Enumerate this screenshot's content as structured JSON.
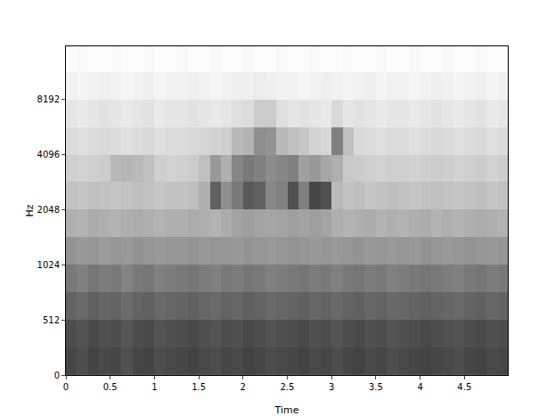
{
  "chart_data": {
    "type": "heatmap",
    "xlabel": "Time",
    "ylabel": "Hz",
    "log": "y",
    "xlim": [
      0,
      4.99
    ],
    "xticks": [
      0,
      0.5,
      1,
      1.5,
      2,
      2.5,
      3,
      3.5,
      4,
      4.5
    ],
    "ylim": [
      0,
      16000
    ],
    "yticks": [
      0,
      512,
      1024,
      2048,
      4096,
      8192
    ],
    "color_range": [
      -80,
      0
    ],
    "x": [
      0.0625,
      0.1875,
      0.3125,
      0.4375,
      0.5625,
      0.6875,
      0.8125,
      0.9375,
      1.0625,
      1.1875,
      1.3125,
      1.4375,
      1.5625,
      1.6875,
      1.8125,
      1.9375,
      2.0625,
      2.1875,
      2.3125,
      2.4375,
      2.5625,
      2.6875,
      2.8125,
      2.9375,
      3.0625,
      3.1875,
      3.3125,
      3.4375,
      3.5625,
      3.6875,
      3.8125,
      3.9375,
      4.0625,
      4.1875,
      4.3125,
      4.4375,
      4.5625,
      4.6875,
      4.8125,
      4.9375
    ],
    "y": [
      128,
      384,
      608,
      861,
      1218,
      1722,
      2435,
      3444,
      4871,
      6889,
      9742,
      13777
    ],
    "z": [
      [
        -22,
        -24,
        -21,
        -23,
        -22,
        -25,
        -22,
        -21,
        -24,
        -23,
        -22,
        -21,
        -23,
        -24,
        -22,
        -23,
        -21,
        -22,
        -24,
        -23,
        -22,
        -21,
        -23,
        -22,
        -24,
        -22,
        -21,
        -23,
        -22,
        -24,
        -23,
        -22,
        -21,
        -22,
        -23,
        -24,
        -22,
        -21,
        -23,
        -22
      ],
      [
        -24,
        -26,
        -23,
        -25,
        -24,
        -27,
        -24,
        -23,
        -26,
        -25,
        -24,
        -23,
        -25,
        -26,
        -24,
        -25,
        -23,
        -24,
        -26,
        -25,
        -24,
        -23,
        -25,
        -24,
        -26,
        -24,
        -23,
        -25,
        -24,
        -26,
        -25,
        -24,
        -23,
        -24,
        -25,
        -26,
        -24,
        -23,
        -25,
        -24
      ],
      [
        -31,
        -33,
        -30,
        -32,
        -31,
        -34,
        -31,
        -30,
        -33,
        -32,
        -31,
        -30,
        -32,
        -33,
        -31,
        -32,
        -30,
        -31,
        -33,
        -32,
        -31,
        -30,
        -32,
        -31,
        -33,
        -31,
        -30,
        -32,
        -31,
        -33,
        -32,
        -31,
        -30,
        -31,
        -32,
        -33,
        -31,
        -30,
        -32,
        -31
      ],
      [
        -38,
        -40,
        -37,
        -39,
        -38,
        -41,
        -38,
        -37,
        -40,
        -39,
        -38,
        -37,
        -39,
        -40,
        -38,
        -39,
        -37,
        -38,
        -40,
        -39,
        -38,
        -37,
        -39,
        -38,
        -40,
        -38,
        -37,
        -39,
        -38,
        -40,
        -39,
        -38,
        -37,
        -38,
        -39,
        -40,
        -38,
        -37,
        -39,
        -38
      ],
      [
        -46,
        -48,
        -47,
        -49,
        -47,
        -48,
        -46,
        -47,
        -48,
        -47,
        -47,
        -46,
        -48,
        -47,
        -47,
        -48,
        -46,
        -47,
        -48,
        -47,
        -46,
        -47,
        -48,
        -47,
        -48,
        -47,
        -46,
        -48,
        -47,
        -48,
        -47,
        -48,
        -46,
        -47,
        -48,
        -47,
        -46,
        -47,
        -48,
        -47
      ],
      [
        -55,
        -56,
        -54,
        -55,
        -56,
        -55,
        -54,
        -55,
        -56,
        -55,
        -55,
        -54,
        -55,
        -56,
        -54,
        -51,
        -50,
        -51,
        -52,
        -51,
        -50,
        -51,
        -50,
        -51,
        -55,
        -56,
        -55,
        -54,
        -56,
        -55,
        -56,
        -55,
        -54,
        -56,
        -55,
        -56,
        -55,
        -54,
        -55,
        -56
      ],
      [
        -61,
        -62,
        -60,
        -61,
        -62,
        -61,
        -60,
        -61,
        -62,
        -61,
        -61,
        -60,
        -55,
        -30,
        -45,
        -38,
        -28,
        -30,
        -42,
        -40,
        -25,
        -40,
        -22,
        -25,
        -58,
        -61,
        -60,
        -62,
        -61,
        -60,
        -61,
        -62,
        -61,
        -60,
        -61,
        -62,
        -61,
        -60,
        -62,
        -61
      ],
      [
        -65,
        -66,
        -65,
        -64,
        -58,
        -57,
        -58,
        -60,
        -65,
        -66,
        -65,
        -64,
        -60,
        -48,
        -55,
        -42,
        -38,
        -40,
        -44,
        -42,
        -40,
        -50,
        -48,
        -52,
        -55,
        -63,
        -64,
        -65,
        -66,
        -65,
        -65,
        -66,
        -65,
        -64,
        -65,
        -66,
        -65,
        -64,
        -66,
        -65
      ],
      [
        -69,
        -70,
        -69,
        -68,
        -69,
        -70,
        -69,
        -68,
        -70,
        -69,
        -69,
        -68,
        -67,
        -66,
        -65,
        -58,
        -56,
        -45,
        -46,
        -58,
        -60,
        -62,
        -66,
        -67,
        -40,
        -60,
        -68,
        -69,
        -70,
        -69,
        -69,
        -70,
        -69,
        -68,
        -69,
        -70,
        -69,
        -68,
        -70,
        -69
      ],
      [
        -72,
        -73,
        -72,
        -71,
        -72,
        -73,
        -72,
        -71,
        -73,
        -72,
        -72,
        -71,
        -72,
        -73,
        -72,
        -70,
        -69,
        -64,
        -64,
        -70,
        -72,
        -71,
        -72,
        -73,
        -68,
        -72,
        -71,
        -72,
        -73,
        -72,
        -72,
        -73,
        -72,
        -71,
        -72,
        -73,
        -72,
        -71,
        -73,
        -72
      ],
      [
        -76,
        -77,
        -76,
        -75,
        -76,
        -77,
        -76,
        -75,
        -77,
        -76,
        -76,
        -75,
        -76,
        -77,
        -76,
        -75,
        -75,
        -74,
        -75,
        -76,
        -76,
        -77,
        -76,
        -75,
        -76,
        -77,
        -76,
        -75,
        -77,
        -76,
        -76,
        -77,
        -76,
        -75,
        -76,
        -77,
        -76,
        -75,
        -77,
        -76
      ],
      [
        -79,
        -78,
        -79,
        -79,
        -78,
        -79,
        -79,
        -78,
        -79,
        -79,
        -78,
        -79,
        -79,
        -78,
        -79,
        -79,
        -78,
        -79,
        -79,
        -78,
        -79,
        -79,
        -78,
        -79,
        -79,
        -78,
        -79,
        -79,
        -78,
        -79,
        -79,
        -78,
        -79,
        -79,
        -78,
        -79,
        -79,
        -78,
        -79,
        -79
      ]
    ]
  }
}
